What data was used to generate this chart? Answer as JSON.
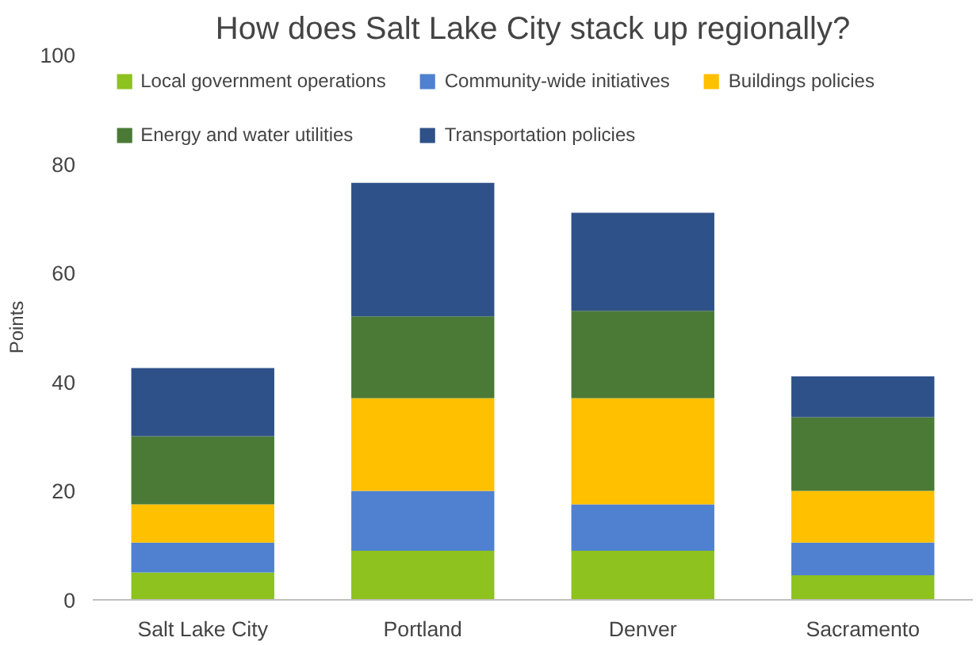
{
  "chart_data": {
    "type": "bar",
    "stacked": true,
    "title": "How does Salt Lake City stack up regionally?",
    "ylabel": "Points",
    "categories": [
      "Salt Lake City",
      "Portland",
      "Denver",
      "Sacramento"
    ],
    "series": [
      {
        "name": "Local government operations",
        "color": "#8dc21f",
        "values": [
          5,
          9,
          9,
          4.5
        ]
      },
      {
        "name": "Community-wide initiatives",
        "color": "#4f81d0",
        "values": [
          5.5,
          11,
          8.5,
          6
        ]
      },
      {
        "name": "Buildings policies",
        "color": "#ffc000",
        "values": [
          7,
          17,
          19.5,
          9.5
        ]
      },
      {
        "name": "Energy and water utilities",
        "color": "#4a7a36",
        "values": [
          12.5,
          15,
          16,
          13.5
        ]
      },
      {
        "name": "Transportation policies",
        "color": "#2f5189",
        "values": [
          12.5,
          24.5,
          18,
          7.5
        ]
      }
    ],
    "ylim": [
      0,
      100
    ],
    "yticks": [
      0,
      20,
      40,
      60,
      80,
      100
    ],
    "grid": false,
    "legend": "top"
  }
}
